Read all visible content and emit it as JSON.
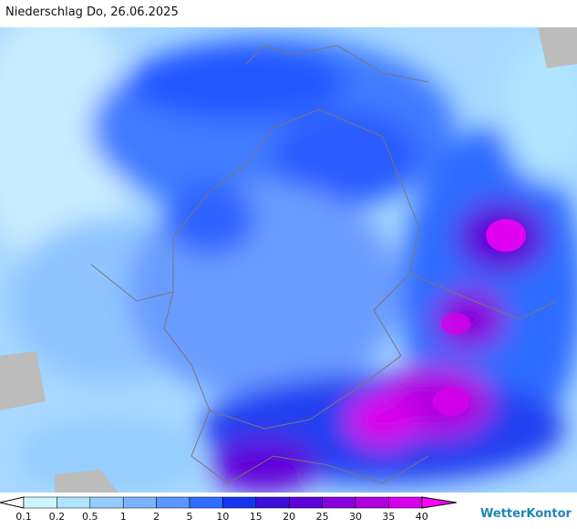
{
  "header": {
    "title": "Niederschlag Do, 26.06.2025"
  },
  "legend": {
    "labels": [
      0.1,
      0.2,
      0.5,
      1,
      2,
      5,
      10,
      15,
      20,
      25,
      30,
      35,
      40
    ],
    "colors": [
      "#ffffff",
      "#ccf5ff",
      "#b0e4ff",
      "#94cdff",
      "#7ab4ff",
      "#5a96ff",
      "#2f6cff",
      "#1436f0",
      "#3a10d8",
      "#6000d8",
      "#8a00dc",
      "#b000e0",
      "#d800ec",
      "#ff00f8",
      "#e000e8"
    ]
  },
  "brand": "WetterKontor"
}
